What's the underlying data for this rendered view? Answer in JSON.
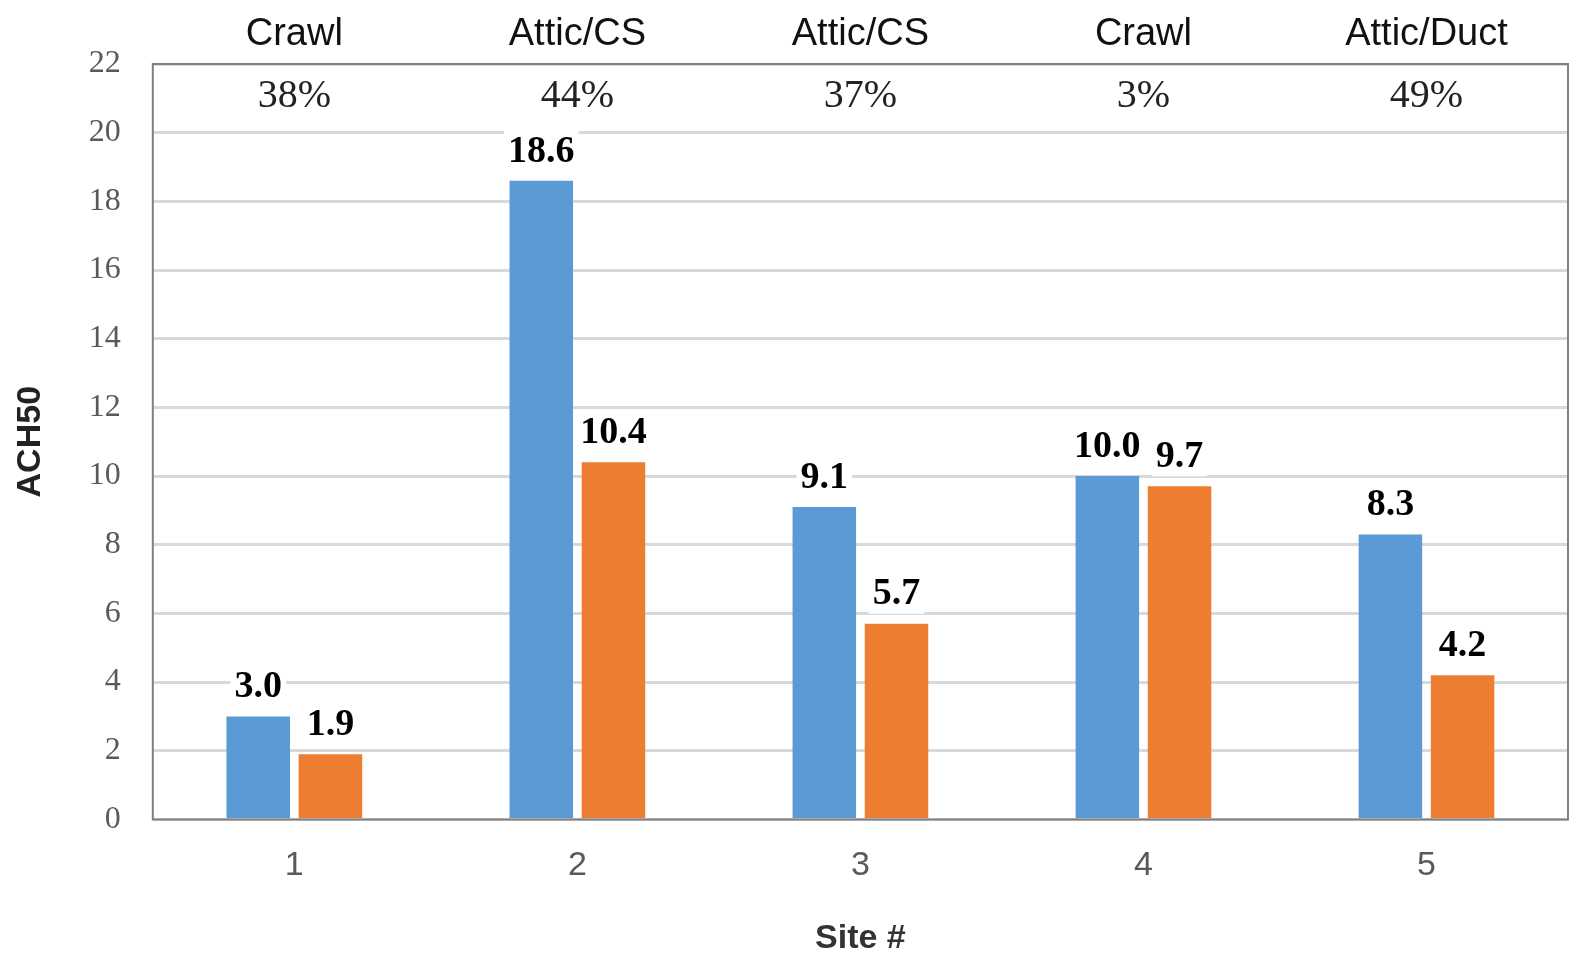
{
  "chart_data": {
    "type": "bar",
    "xlabel": "Site #",
    "ylabel": "ACH50",
    "categories": [
      "1",
      "2",
      "3",
      "4",
      "5"
    ],
    "series": [
      {
        "color": "#5b9bd5",
        "values": [
          3.0,
          18.6,
          9.1,
          10.0,
          8.3
        ],
        "value_labels": [
          "3.0",
          "18.6",
          "9.1",
          "10.0",
          "8.3"
        ]
      },
      {
        "color": "#ed7d31",
        "values": [
          1.9,
          10.4,
          5.7,
          9.7,
          4.2
        ],
        "value_labels": [
          "1.9",
          "10.4",
          "5.7",
          "9.7",
          "4.2"
        ]
      }
    ],
    "ylim": [
      0,
      22
    ],
    "yticks": [
      0,
      2,
      4,
      6,
      8,
      10,
      12,
      14,
      16,
      18,
      20,
      22
    ],
    "grid": "y",
    "legend": false,
    "annotations": [
      "Crawl",
      "Attic/CS",
      "Attic/CS",
      "Crawl",
      "Attic/Duct",
      "38%",
      "44%",
      "37%",
      "3%",
      "49%"
    ]
  }
}
